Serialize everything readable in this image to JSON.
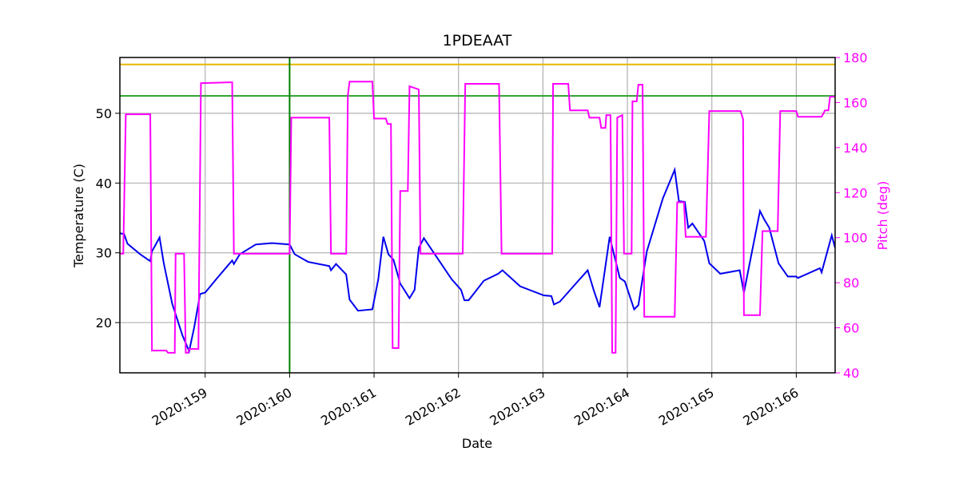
{
  "chart_data": {
    "type": "line",
    "title": "1PDEAAT",
    "xlabel": "Date",
    "ylabel": "Temperature (C)",
    "y2label": "Pitch (deg)",
    "grid": true,
    "xlim": [
      157.99,
      166.46
    ],
    "xticks": [
      {
        "value": 159,
        "label": "2020:159"
      },
      {
        "value": 160,
        "label": "2020:160"
      },
      {
        "value": 161,
        "label": "2020:161"
      },
      {
        "value": 162,
        "label": "2020:162"
      },
      {
        "value": 163,
        "label": "2020:163"
      },
      {
        "value": 164,
        "label": "2020:164"
      },
      {
        "value": 165,
        "label": "2020:165"
      },
      {
        "value": 166,
        "label": "2020:166"
      }
    ],
    "ylim": [
      12.8,
      58.0
    ],
    "yticks": [
      20,
      30,
      40,
      50
    ],
    "y2lim": [
      40,
      180
    ],
    "y2ticks": [
      40,
      60,
      80,
      100,
      120,
      140,
      160,
      180
    ],
    "hlines": [
      {
        "value": 57.0,
        "color": "#e6b800"
      },
      {
        "value": 52.5,
        "color": "#2ca02c"
      }
    ],
    "vlines": [
      {
        "value": 160,
        "color": "green"
      }
    ],
    "series": [
      {
        "color": "#0000ee",
        "x": [
          157.99,
          158.04,
          158.08,
          158.23,
          158.35,
          158.37,
          158.46,
          158.51,
          158.61,
          158.73,
          158.81,
          158.87,
          158.94,
          159.0,
          159.13,
          159.27,
          159.32,
          159.34,
          159.41,
          159.6,
          159.79,
          160.0,
          160.06,
          160.22,
          160.47,
          160.49,
          160.55,
          160.67,
          160.71,
          160.81,
          160.98,
          161.05,
          161.11,
          161.17,
          161.23,
          161.31,
          161.42,
          161.48,
          161.53,
          161.59,
          161.73,
          161.92,
          162.03,
          162.07,
          162.12,
          162.3,
          162.47,
          162.52,
          162.73,
          163.01,
          163.1,
          163.13,
          163.2,
          163.39,
          163.53,
          163.6,
          163.67,
          163.79,
          163.91,
          163.97,
          164.08,
          164.13,
          164.23,
          164.42,
          164.56,
          164.61,
          164.68,
          164.72,
          164.77,
          164.91,
          164.97,
          165.1,
          165.33,
          165.38,
          165.57,
          165.62,
          165.68,
          165.79,
          165.9,
          166.0,
          166.02,
          166.28,
          166.3,
          166.42,
          166.46
        ],
        "values": [
          32.8,
          32.7,
          31.3,
          29.8,
          28.8,
          30.2,
          32.2,
          28.5,
          22.7,
          18.2,
          15.9,
          19.3,
          24.1,
          24.3,
          26.2,
          28.2,
          28.9,
          28.4,
          29.8,
          31.2,
          31.4,
          31.2,
          29.8,
          28.7,
          28.1,
          27.5,
          28.4,
          26.9,
          23.3,
          21.7,
          21.9,
          26.2,
          32.3,
          29.8,
          29.0,
          25.6,
          23.5,
          24.7,
          30.7,
          32.1,
          29.6,
          26.2,
          24.7,
          23.2,
          23.2,
          26.0,
          27.0,
          27.5,
          25.2,
          23.9,
          23.8,
          22.6,
          23.0,
          25.6,
          27.5,
          24.7,
          22.2,
          32.3,
          26.4,
          25.9,
          21.9,
          22.5,
          30.2,
          37.8,
          41.9,
          37.4,
          37.3,
          33.6,
          34.2,
          31.7,
          28.5,
          27.0,
          27.5,
          24.3,
          36.0,
          34.8,
          33.6,
          28.5,
          26.6,
          26.6,
          26.4,
          27.8,
          27.2,
          32.5,
          30.7
        ]
      },
      {
        "color": "#ff00ff",
        "axis": "y2",
        "x": [
          157.99,
          158.03,
          158.06,
          158.35,
          158.37,
          158.54,
          158.56,
          158.64,
          158.65,
          158.75,
          158.77,
          158.8,
          158.81,
          158.92,
          158.95,
          159.32,
          159.34,
          160.0,
          160.02,
          160.47,
          160.49,
          160.67,
          160.69,
          160.71,
          160.98,
          161.0,
          161.14,
          161.16,
          161.2,
          161.22,
          161.29,
          161.31,
          161.4,
          161.42,
          161.53,
          161.55,
          162.05,
          162.08,
          162.48,
          162.51,
          163.11,
          163.12,
          163.3,
          163.32,
          163.53,
          163.55,
          163.67,
          163.69,
          163.74,
          163.75,
          163.8,
          163.82,
          163.86,
          163.88,
          163.94,
          163.96,
          164.05,
          164.06,
          164.11,
          164.13,
          164.18,
          164.2,
          164.56,
          164.59,
          164.67,
          164.69,
          164.93,
          164.97,
          165.34,
          165.37,
          165.38,
          165.57,
          165.6,
          165.78,
          165.81,
          166.0,
          166.02,
          166.3,
          166.34,
          166.38,
          166.4,
          166.46
        ],
        "values": [
          92.9,
          92.9,
          154.8,
          154.8,
          49.9,
          49.9,
          48.9,
          48.9,
          92.9,
          92.9,
          48.9,
          48.9,
          50.6,
          50.6,
          168.6,
          169.0,
          92.9,
          92.9,
          153.3,
          153.3,
          92.9,
          92.9,
          163.3,
          169.3,
          169.3,
          152.9,
          152.9,
          150.5,
          150.5,
          51.0,
          51.0,
          120.7,
          120.7,
          167.2,
          165.8,
          92.9,
          92.9,
          168.3,
          168.3,
          92.9,
          92.9,
          168.3,
          168.3,
          156.5,
          156.5,
          153.3,
          153.3,
          148.7,
          148.7,
          154.4,
          154.4,
          48.9,
          48.9,
          153.3,
          154.4,
          92.9,
          92.9,
          160.5,
          160.5,
          167.9,
          167.9,
          64.9,
          64.9,
          115.7,
          115.7,
          100.4,
          100.4,
          156.2,
          156.2,
          152.6,
          65.6,
          65.6,
          102.9,
          102.9,
          156.2,
          156.2,
          153.7,
          153.7,
          156.5,
          156.5,
          162.6,
          162.6
        ]
      }
    ]
  }
}
